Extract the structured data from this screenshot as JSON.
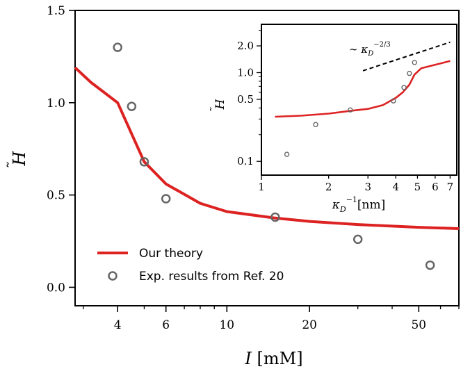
{
  "chart_data": [
    {
      "type": "line",
      "xlabel": "I [mM]",
      "ylabel": "H̃",
      "xscale": "log",
      "xlim": [
        2.8,
        70
      ],
      "ylim": [
        -0.1,
        1.5
      ],
      "xticks": [
        4,
        6,
        10,
        20,
        50
      ],
      "xtick_labels": [
        "4",
        "6",
        "10",
        "20",
        "50"
      ],
      "yticks": [
        0.0,
        0.5,
        1.0,
        1.5
      ],
      "ytick_labels": [
        "0.0",
        "0.5",
        "1.0",
        "1.5"
      ],
      "legend_position": "lower-left",
      "grid": false,
      "series": [
        {
          "name": "Our theory",
          "kind": "line",
          "color": "#dd2222",
          "x": [
            2.8,
            3.2,
            4.0,
            5.0,
            6.0,
            8.0,
            10.0,
            15.0,
            20.0,
            30.0,
            50.0,
            70.0
          ],
          "y": [
            1.19,
            1.11,
            1.0,
            0.68,
            0.56,
            0.455,
            0.41,
            0.375,
            0.357,
            0.34,
            0.325,
            0.318
          ]
        },
        {
          "name": "Exp. results from Ref. 20",
          "kind": "scatter",
          "color": "#666666",
          "x": [
            4.0,
            4.5,
            5.0,
            6.0,
            15.0,
            30.0,
            55.0
          ],
          "y": [
            1.3,
            0.98,
            0.68,
            0.48,
            0.38,
            0.26,
            0.12
          ]
        }
      ]
    },
    {
      "type": "line",
      "xlabel": "κ_D^-1 [nm]",
      "ylabel": "H̃",
      "xscale": "log",
      "yscale": "log",
      "xlim": [
        1.0,
        7.5
      ],
      "ylim": [
        0.07,
        3.5
      ],
      "xticks": [
        1,
        2,
        3,
        4,
        5,
        6,
        7
      ],
      "xtick_labels": [
        "1",
        "2",
        "3",
        "4",
        "5",
        "6",
        "7"
      ],
      "yticks": [
        0.1,
        0.5,
        1.0,
        2.0
      ],
      "ytick_labels": [
        "0.1",
        "0.5",
        "1.0",
        "2.0"
      ],
      "annotation": "∼ κ_D^-2/3",
      "series": [
        {
          "kind": "line",
          "color": "#dd2222",
          "x": [
            1.15,
            1.5,
            2.0,
            2.5,
            3.0,
            3.5,
            4.0,
            4.3,
            4.6,
            4.85,
            5.2,
            5.8,
            7.0
          ],
          "y": [
            0.318,
            0.327,
            0.345,
            0.37,
            0.39,
            0.43,
            0.52,
            0.6,
            0.73,
            0.95,
            1.12,
            1.2,
            1.35
          ]
        },
        {
          "kind": "scatter",
          "color": "#666666",
          "x": [
            1.3,
            1.75,
            2.5,
            3.9,
            4.35,
            4.6,
            4.85
          ],
          "y": [
            0.12,
            0.26,
            0.38,
            0.48,
            0.68,
            0.98,
            1.3
          ]
        },
        {
          "kind": "dashed-line",
          "color": "#000000",
          "x": [
            2.85,
            7.0
          ],
          "y": [
            1.05,
            2.2
          ]
        }
      ]
    }
  ]
}
